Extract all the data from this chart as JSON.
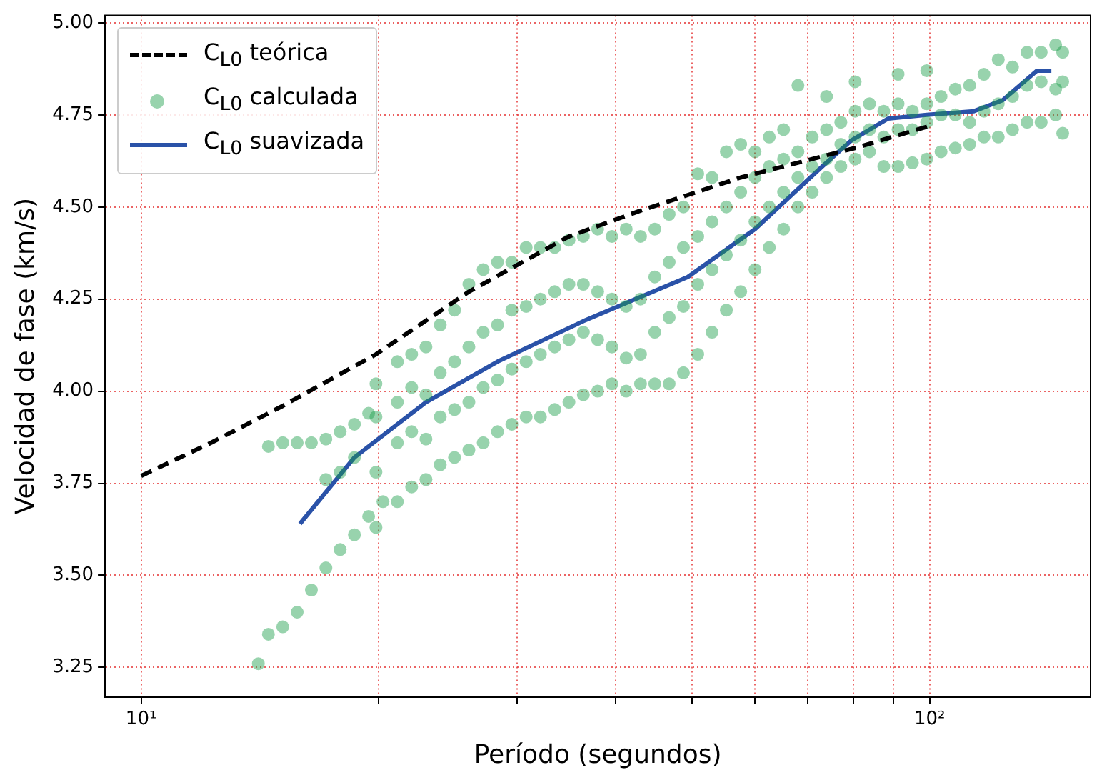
{
  "chart_data": {
    "type": "scatter",
    "xlabel": "Período (segundos)",
    "ylabel": "Velocidad de fase (km/s)",
    "log": "x",
    "grid": true,
    "legend": "top left",
    "xlim": [
      9.0,
      160
    ],
    "xticks": [
      {
        "value": 10,
        "label": "10¹"
      },
      {
        "value": 20,
        "label": null
      },
      {
        "value": 30,
        "label": null
      },
      {
        "value": 40,
        "label": null
      },
      {
        "value": 50,
        "label": null
      },
      {
        "value": 60,
        "label": null
      },
      {
        "value": 70,
        "label": null
      },
      {
        "value": 80,
        "label": null
      },
      {
        "value": 90,
        "label": null
      },
      {
        "value": 100,
        "label": "10²"
      }
    ],
    "ylim": [
      3.17,
      5.02
    ],
    "yticks": [
      {
        "value": 3.25,
        "label": "3.25"
      },
      {
        "value": 3.5,
        "label": "3.50"
      },
      {
        "value": 3.75,
        "label": "3.75"
      },
      {
        "value": 4.0,
        "label": "4.00"
      },
      {
        "value": 4.25,
        "label": "4.25"
      },
      {
        "value": 4.5,
        "label": "4.50"
      },
      {
        "value": 4.75,
        "label": "4.75"
      },
      {
        "value": 5.0,
        "label": "5.00"
      }
    ],
    "series": [
      {
        "name": "C$_{L0}$ teórica",
        "type": "line",
        "color": "#000000",
        "line_style": "dashed",
        "marker": "none",
        "x": [
          10,
          12.27,
          15.12,
          19.85,
          26.04,
          34.88,
          42.99,
          57.6,
          80.4,
          100
        ],
        "values": [
          3.77,
          3.86,
          3.96,
          4.1,
          4.27,
          4.42,
          4.49,
          4.58,
          4.66,
          4.72
        ]
      },
      {
        "name": "C$_{L0}$ calculada",
        "color": "#1a9e4a",
        "marker": "circle",
        "x": [
          14.08,
          14.5,
          15.12,
          15.77,
          16.44,
          17.15,
          17.88,
          18.64,
          19.43,
          20.26,
          14.5,
          15.12,
          15.77,
          16.44,
          17.15,
          17.88,
          18.64,
          19.43,
          17.15,
          17.88,
          18.64,
          19.85,
          19.85,
          19.85,
          19.85,
          21.13,
          21.13,
          21.13,
          21.13,
          22.03,
          22.03,
          22.03,
          22.03,
          22.97,
          22.97,
          22.97,
          22.97,
          23.95,
          23.95,
          23.95,
          23.95,
          24.97,
          24.97,
          24.97,
          24.97,
          26.04,
          26.04,
          26.04,
          26.04,
          27.15,
          27.15,
          27.15,
          27.15,
          28.31,
          28.31,
          28.31,
          28.31,
          29.52,
          29.52,
          29.52,
          29.52,
          30.78,
          30.78,
          30.78,
          30.78,
          32.09,
          32.09,
          32.09,
          32.09,
          33.46,
          33.46,
          33.46,
          33.46,
          34.88,
          34.88,
          34.88,
          34.88,
          36.38,
          36.38,
          36.38,
          36.38,
          37.93,
          37.93,
          37.93,
          37.93,
          39.55,
          39.55,
          39.55,
          39.55,
          41.23,
          41.23,
          41.23,
          41.23,
          42.99,
          42.99,
          42.99,
          42.99,
          44.82,
          44.82,
          44.82,
          44.82,
          46.74,
          46.74,
          46.74,
          46.74,
          48.73,
          48.73,
          48.73,
          48.73,
          50.81,
          50.81,
          50.81,
          50.81,
          52.98,
          52.98,
          52.98,
          52.98,
          55.24,
          55.24,
          55.24,
          55.24,
          57.6,
          57.6,
          57.6,
          57.6,
          60.06,
          60.06,
          60.06,
          60.06,
          62.62,
          62.62,
          62.62,
          62.62,
          65.29,
          65.29,
          65.29,
          65.29,
          68.08,
          68.08,
          68.08,
          68.08,
          70.98,
          70.98,
          70.98,
          74.01,
          74.01,
          74.01,
          74.01,
          77.17,
          77.17,
          77.17,
          80.46,
          80.46,
          80.46,
          80.46,
          83.9,
          83.9,
          83.9,
          87.48,
          87.48,
          87.48,
          91.21,
          91.21,
          91.21,
          91.21,
          95.11,
          95.11,
          95.11,
          99.17,
          99.17,
          99.17,
          99.17,
          103.4,
          103.4,
          103.4,
          107.8,
          107.8,
          107.8,
          112.4,
          112.4,
          112.4,
          117.2,
          117.2,
          117.2,
          122.2,
          122.2,
          122.2,
          127.4,
          127.4,
          127.4,
          132.9,
          132.9,
          132.9,
          138.5,
          138.5,
          138.5,
          144.5,
          144.5,
          144.5,
          147.5,
          147.5,
          147.5
        ],
        "values": [
          3.26,
          3.34,
          3.36,
          3.4,
          3.46,
          3.52,
          3.57,
          3.61,
          3.66,
          3.7,
          3.85,
          3.86,
          3.86,
          3.86,
          3.87,
          3.89,
          3.91,
          3.94,
          3.76,
          3.78,
          3.82,
          3.63,
          3.78,
          3.93,
          4.02,
          3.7,
          3.86,
          3.97,
          4.08,
          3.74,
          3.89,
          4.01,
          4.1,
          3.76,
          3.87,
          3.99,
          4.12,
          3.8,
          3.93,
          4.05,
          4.18,
          3.82,
          3.95,
          4.08,
          4.22,
          3.84,
          3.97,
          4.12,
          4.29,
          3.86,
          4.01,
          4.16,
          4.33,
          3.89,
          4.03,
          4.18,
          4.35,
          3.91,
          4.06,
          4.22,
          4.35,
          3.93,
          4.08,
          4.23,
          4.39,
          3.93,
          4.1,
          4.25,
          4.39,
          3.95,
          4.12,
          4.27,
          4.39,
          3.97,
          4.14,
          4.29,
          4.41,
          3.99,
          4.16,
          4.29,
          4.42,
          4.0,
          4.14,
          4.27,
          4.44,
          4.02,
          4.12,
          4.25,
          4.42,
          4.0,
          4.09,
          4.23,
          4.44,
          4.02,
          4.1,
          4.25,
          4.42,
          4.02,
          4.16,
          4.31,
          4.44,
          4.02,
          4.2,
          4.35,
          4.48,
          4.05,
          4.23,
          4.39,
          4.5,
          4.1,
          4.29,
          4.42,
          4.59,
          4.16,
          4.33,
          4.46,
          4.58,
          4.22,
          4.37,
          4.5,
          4.65,
          4.27,
          4.41,
          4.54,
          4.67,
          4.33,
          4.46,
          4.58,
          4.65,
          4.39,
          4.5,
          4.61,
          4.69,
          4.44,
          4.54,
          4.63,
          4.71,
          4.5,
          4.58,
          4.65,
          4.83,
          4.54,
          4.61,
          4.69,
          4.58,
          4.63,
          4.71,
          4.8,
          4.61,
          4.67,
          4.73,
          4.63,
          4.69,
          4.76,
          4.84,
          4.65,
          4.71,
          4.78,
          4.61,
          4.69,
          4.76,
          4.61,
          4.71,
          4.78,
          4.86,
          4.62,
          4.71,
          4.76,
          4.63,
          4.73,
          4.78,
          4.87,
          4.65,
          4.75,
          4.8,
          4.66,
          4.75,
          4.82,
          4.67,
          4.73,
          4.83,
          4.69,
          4.76,
          4.86,
          4.69,
          4.78,
          4.9,
          4.71,
          4.8,
          4.88,
          4.73,
          4.83,
          4.92,
          4.73,
          4.84,
          4.92,
          4.75,
          4.82,
          4.94,
          4.7,
          4.84,
          4.92
        ]
      },
      {
        "name": "C$_{L0}$ suavizada",
        "type": "line",
        "color": "#2a52a8",
        "line_style": "solid",
        "marker": "none",
        "x": [
          15.9,
          18.64,
          22.97,
          28.31,
          36.38,
          49.36,
          60.06,
          73.1,
          79.5,
          88.6,
          99.2,
          113.8,
          123.8,
          136.8,
          142.7
        ],
        "values": [
          3.64,
          3.82,
          3.97,
          4.08,
          4.19,
          4.31,
          4.44,
          4.61,
          4.68,
          4.74,
          4.75,
          4.76,
          4.79,
          4.87,
          4.87
        ]
      }
    ]
  }
}
